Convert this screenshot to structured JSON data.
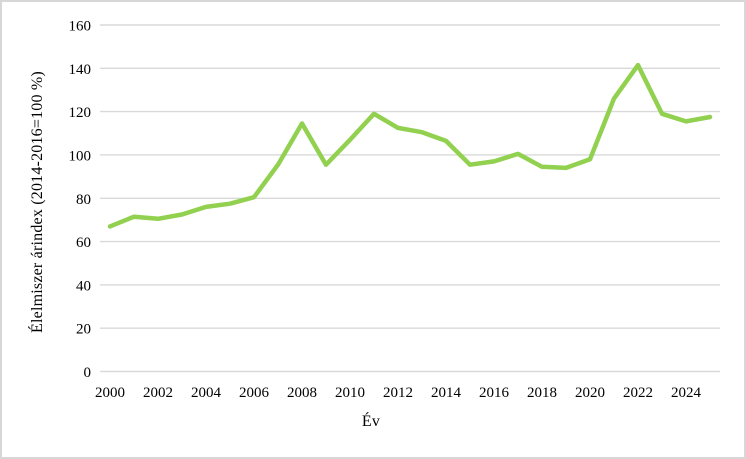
{
  "frame": {
    "background": "#ffffff",
    "border_color": "#d7d7d7"
  },
  "chart_data": {
    "type": "line",
    "title": "",
    "xlabel": "Év",
    "ylabel": "Élelmiszer árindex (2014-2016=100 %)",
    "x": [
      2000,
      2001,
      2002,
      2003,
      2004,
      2005,
      2006,
      2007,
      2008,
      2009,
      2010,
      2011,
      2012,
      2013,
      2014,
      2015,
      2016,
      2017,
      2018,
      2019,
      2020,
      2021,
      2022,
      2023,
      2024,
      2025
    ],
    "series": [
      {
        "name": "Élelmiszer árindex",
        "color": "#92d050",
        "values": [
          67,
          71.5,
          70.5,
          72.5,
          76,
          77.5,
          80.5,
          95.5,
          114.5,
          95.5,
          107,
          119,
          112.5,
          110.5,
          106.5,
          95.5,
          97,
          100.5,
          94.5,
          94,
          98,
          126,
          141.5,
          119,
          115.5,
          117.5
        ]
      }
    ],
    "xlim": [
      2000,
      2025
    ],
    "ylim": [
      0,
      160
    ],
    "xticks": [
      2000,
      2002,
      2004,
      2006,
      2008,
      2010,
      2012,
      2014,
      2016,
      2018,
      2020,
      2022,
      2024
    ],
    "yticks": [
      0,
      20,
      40,
      60,
      80,
      100,
      120,
      140,
      160
    ],
    "grid": "horizontal",
    "gridline_color": "#d9d9d9",
    "tick_text_color": "#000000",
    "legend": "none",
    "markers": "none"
  }
}
